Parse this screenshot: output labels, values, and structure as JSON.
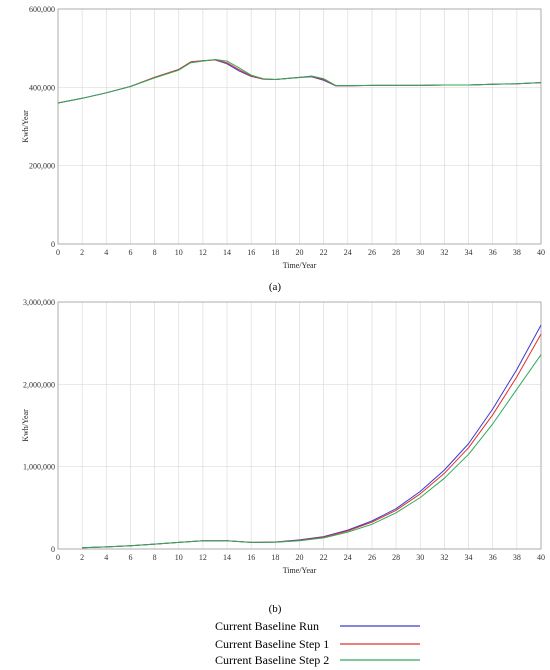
{
  "chart_data": [
    {
      "type": "line",
      "caption": "(a)",
      "xlabel": "Time/Year",
      "ylabel": "Kwh/Year",
      "xlim": [
        0,
        40
      ],
      "ylim": [
        0,
        600000
      ],
      "x_ticks": [
        0,
        2,
        4,
        6,
        8,
        10,
        12,
        14,
        16,
        18,
        20,
        22,
        24,
        26,
        28,
        30,
        32,
        34,
        36,
        38,
        40
      ],
      "x_tick_labels": [
        "0",
        "2",
        "4",
        "6",
        "8",
        "10",
        "12",
        "14",
        "16",
        "18",
        "20",
        "22",
        "24",
        "26",
        "28",
        "30",
        "32",
        "34",
        "36",
        "38",
        "40"
      ],
      "y_ticks": [
        0,
        200000,
        400000,
        600000
      ],
      "y_tick_labels": [
        "0",
        "200,000",
        "400,000",
        "600,000"
      ],
      "grid": true,
      "series": [
        {
          "name": "Current Baseline Run",
          "color": "#3a3ad0",
          "x": [
            0,
            2,
            4,
            6,
            8,
            10,
            11,
            12,
            13,
            14,
            15,
            16,
            17,
            18,
            20,
            21,
            22,
            23,
            24,
            26,
            28,
            30,
            32,
            34,
            36,
            38,
            40
          ],
          "y": [
            360000,
            372000,
            386000,
            402000,
            425000,
            445000,
            465000,
            468000,
            470000,
            460000,
            442000,
            428000,
            421000,
            420000,
            425000,
            427000,
            418000,
            404000,
            404000,
            405000,
            405000,
            405000,
            406000,
            406000,
            408000,
            409000,
            412000
          ]
        },
        {
          "name": "Current Baseline Step 1",
          "color": "#e03030",
          "x": [
            0,
            2,
            4,
            6,
            8,
            10,
            11,
            12,
            13,
            14,
            15,
            16,
            17,
            18,
            20,
            21,
            22,
            23,
            24,
            26,
            28,
            30,
            32,
            34,
            36,
            38,
            40
          ],
          "y": [
            360000,
            372000,
            386000,
            402000,
            426000,
            446000,
            465000,
            468000,
            470000,
            463000,
            445000,
            429000,
            421000,
            420000,
            426000,
            428000,
            420000,
            404000,
            404000,
            405000,
            405000,
            405000,
            406000,
            406000,
            408000,
            409000,
            412000
          ]
        },
        {
          "name": "Current Baseline Step 2",
          "color": "#2eaa5a",
          "x": [
            0,
            2,
            4,
            6,
            8,
            10,
            11,
            12,
            13,
            14,
            15,
            16,
            17,
            18,
            20,
            21,
            22,
            23,
            24,
            26,
            28,
            30,
            32,
            34,
            36,
            38,
            40
          ],
          "y": [
            360000,
            372000,
            386000,
            402000,
            424000,
            444000,
            463000,
            467000,
            471000,
            467000,
            450000,
            431000,
            422000,
            420000,
            425000,
            429000,
            422000,
            405000,
            404000,
            405000,
            405000,
            405000,
            406000,
            406000,
            408000,
            409000,
            412000
          ]
        }
      ]
    },
    {
      "type": "line",
      "caption": "(b)",
      "xlabel": "Time/Year",
      "ylabel": "Kwh/Year",
      "xlim": [
        0,
        40
      ],
      "ylim": [
        0,
        3000000
      ],
      "x_ticks": [
        0,
        2,
        4,
        6,
        8,
        10,
        12,
        14,
        16,
        18,
        20,
        22,
        24,
        26,
        28,
        30,
        32,
        34,
        36,
        38,
        40
      ],
      "x_tick_labels": [
        "0",
        "2",
        "4",
        "6",
        "8",
        "10",
        "12",
        "14",
        "16",
        "18",
        "20",
        "22",
        "24",
        "26",
        "28",
        "30",
        "32",
        "34",
        "36",
        "38",
        "40"
      ],
      "y_ticks": [
        0,
        1000000,
        2000000,
        3000000
      ],
      "y_tick_labels": [
        "0",
        "1,000,000",
        "2,000,000",
        "3,000,000"
      ],
      "grid": true,
      "series": [
        {
          "name": "Current Baseline Run",
          "color": "#3a3ad0",
          "x": [
            2,
            4,
            6,
            8,
            10,
            12,
            14,
            16,
            18,
            20,
            22,
            24,
            26,
            28,
            30,
            32,
            34,
            36,
            38,
            40
          ],
          "y": [
            15000,
            25000,
            40000,
            60000,
            80000,
            100000,
            100000,
            80000,
            85000,
            110000,
            150000,
            230000,
            340000,
            490000,
            700000,
            960000,
            1280000,
            1700000,
            2180000,
            2720000
          ]
        },
        {
          "name": "Current Baseline Step 1",
          "color": "#e03030",
          "x": [
            2,
            4,
            6,
            8,
            10,
            12,
            14,
            16,
            18,
            20,
            22,
            24,
            26,
            28,
            30,
            32,
            34,
            36,
            38,
            40
          ],
          "y": [
            15000,
            25000,
            40000,
            60000,
            80000,
            100000,
            100000,
            80000,
            84000,
            105000,
            145000,
            220000,
            325000,
            470000,
            670000,
            920000,
            1230000,
            1630000,
            2090000,
            2610000
          ]
        },
        {
          "name": "Current Baseline Step 2",
          "color": "#2eaa5a",
          "x": [
            2,
            4,
            6,
            8,
            10,
            12,
            14,
            16,
            18,
            20,
            22,
            24,
            26,
            28,
            30,
            32,
            34,
            36,
            38,
            40
          ],
          "y": [
            15000,
            25000,
            40000,
            60000,
            80000,
            100000,
            100000,
            80000,
            82000,
            100000,
            135000,
            205000,
            300000,
            440000,
            625000,
            860000,
            1150000,
            1520000,
            1940000,
            2360000
          ]
        }
      ]
    }
  ],
  "legend": {
    "entries": [
      {
        "label": "Current Baseline Run",
        "color": "#3a3ad0"
      },
      {
        "label": "Current Baseline Step 1",
        "color": "#e03030"
      },
      {
        "label": "Current Baseline Step 2",
        "color": "#2eaa5a"
      }
    ]
  }
}
